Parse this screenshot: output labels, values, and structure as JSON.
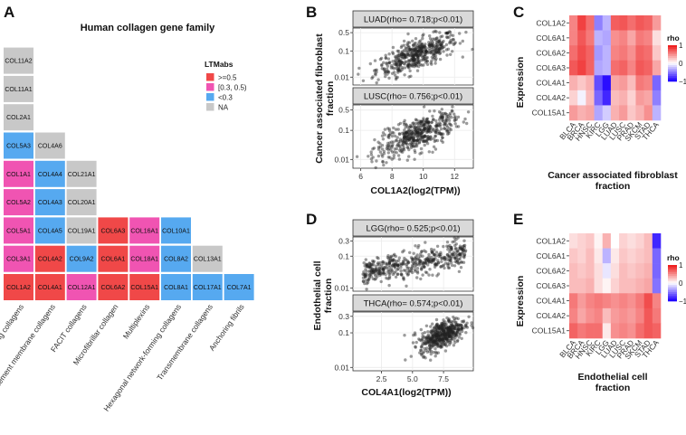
{
  "panels": {
    "a": {
      "letter": "A"
    },
    "b": {
      "letter": "B"
    },
    "c": {
      "letter": "C"
    },
    "d": {
      "letter": "D"
    },
    "e": {
      "letter": "E"
    }
  },
  "chart_data": [
    {
      "type": "table",
      "id": "A",
      "title": "Human collagen gene family",
      "categories": [
        "Fibril-forming collagens",
        "Basement membrane collagens",
        "FACIT collagens",
        "Microfibrillar collagen",
        "Multiplexins",
        "Hexagonal network-forming collagens",
        "Transmembrane collagens",
        "Anchoring fibrils"
      ],
      "columns": [
        [
          {
            "gene": "COL1A2",
            "class": ">=0.5"
          },
          {
            "gene": "COL3A1",
            "class": "[0.3, 0.5)"
          },
          {
            "gene": "COL5A1",
            "class": "[0.3, 0.5)"
          },
          {
            "gene": "COL5A2",
            "class": "[0.3, 0.5)"
          },
          {
            "gene": "COL1A1",
            "class": "[0.3, 0.5)"
          },
          {
            "gene": "COL5A3",
            "class": "<0.3"
          },
          {
            "gene": "COL2A1",
            "class": "NA"
          },
          {
            "gene": "COL11A1",
            "class": "NA"
          },
          {
            "gene": "COL11A2",
            "class": "NA"
          }
        ],
        [
          {
            "gene": "COL4A1",
            "class": ">=0.5"
          },
          {
            "gene": "COL4A2",
            "class": ">=0.5"
          },
          {
            "gene": "COL4A5",
            "class": "<0.3"
          },
          {
            "gene": "COL4A3",
            "class": "<0.3"
          },
          {
            "gene": "COL4A4",
            "class": "<0.3"
          },
          {
            "gene": "COL4A6",
            "class": "NA"
          }
        ],
        [
          {
            "gene": "COL12A1",
            "class": "[0.3, 0.5)"
          },
          {
            "gene": "COL9A2",
            "class": "<0.3"
          },
          {
            "gene": "COL19A1",
            "class": "NA"
          },
          {
            "gene": "COL20A1",
            "class": "NA"
          },
          {
            "gene": "COL21A1",
            "class": "NA"
          }
        ],
        [
          {
            "gene": "COL6A2",
            "class": ">=0.5"
          },
          {
            "gene": "COL6A1",
            "class": ">=0.5"
          },
          {
            "gene": "COL6A3",
            "class": ">=0.5"
          }
        ],
        [
          {
            "gene": "COL15A1",
            "class": ">=0.5"
          },
          {
            "gene": "COL18A1",
            "class": "[0.3, 0.5)"
          },
          {
            "gene": "COL16A1",
            "class": "[0.3, 0.5)"
          }
        ],
        [
          {
            "gene": "COL8A1",
            "class": "<0.3"
          },
          {
            "gene": "COL8A2",
            "class": "<0.3"
          },
          {
            "gene": "COL10A1",
            "class": "<0.3"
          }
        ],
        [
          {
            "gene": "COL17A1",
            "class": "<0.3"
          },
          {
            "gene": "COL13A1",
            "class": "NA"
          }
        ],
        [
          {
            "gene": "COL7A1",
            "class": "<0.3"
          }
        ]
      ],
      "legend": {
        "title": "LTMabs",
        "entries": [
          {
            "label": ">=0.5",
            "color": "#f04848"
          },
          {
            "label": "[0.3, 0.5)",
            "color": "#f054b2"
          },
          {
            "label": "<0.3",
            "color": "#56a9f0"
          },
          {
            "label": "NA",
            "color": "#c8c8c8"
          }
        ]
      }
    },
    {
      "type": "scatter",
      "id": "B",
      "xlabel": "COL1A2(log2(TPM))",
      "ylabel": "Cancer associated fibroblast fraction",
      "xlim": [
        5.5,
        13.2
      ],
      "xticks": [
        6,
        8,
        10,
        12
      ],
      "yscale": "log",
      "facets": [
        {
          "strip": "LUAD(rho= 0.718;p<0.01)",
          "ylim": [
            0.005,
            0.75
          ],
          "yticks": [
            0.01,
            0.1,
            0.5
          ],
          "ytick_labels": [
            "0.01",
            "0.1",
            "0.5"
          ],
          "trend": {
            "x0": 6,
            "x1": 12.8,
            "y0": 0.012,
            "y1": 0.35
          }
        },
        {
          "strip": "LUSC(rho= 0.756;p<0.01)",
          "ylim": [
            0.005,
            0.75
          ],
          "yticks": [
            0.01,
            0.1,
            0.5
          ],
          "ytick_labels": [
            "0.01",
            "0.1",
            "0.5"
          ],
          "trend": {
            "x0": 6,
            "x1": 12.8,
            "y0": 0.012,
            "y1": 0.32
          }
        }
      ]
    },
    {
      "type": "heatmap",
      "id": "C",
      "xlabel": "Cancer associated fibroblast fraction",
      "ylabel": "Expression",
      "rows": [
        "COL1A2",
        "COL6A1",
        "COL6A2",
        "COL6A3",
        "COL4A1",
        "COL4A2",
        "COL15A1"
      ],
      "columns": [
        "BLCA",
        "BRCA",
        "HNSC",
        "KIRC",
        "LGG",
        "LUAD",
        "LUSC",
        "PRAD",
        "SKCM",
        "STAD",
        "THCA"
      ],
      "values": [
        [
          0.55,
          0.85,
          0.65,
          -0.5,
          -0.3,
          0.72,
          0.76,
          0.65,
          0.75,
          0.7,
          0.45
        ],
        [
          0.55,
          0.75,
          0.6,
          -0.3,
          -0.35,
          0.5,
          0.55,
          0.4,
          0.6,
          0.55,
          0.15
        ],
        [
          0.65,
          0.8,
          0.7,
          -0.4,
          -0.3,
          0.55,
          0.6,
          0.5,
          0.7,
          0.65,
          0.25
        ],
        [
          0.75,
          0.85,
          0.7,
          -0.35,
          -0.3,
          0.65,
          0.7,
          0.55,
          0.75,
          0.7,
          0.4
        ],
        [
          0.35,
          0.25,
          0.35,
          -0.7,
          -0.95,
          0.4,
          0.45,
          0.3,
          0.6,
          0.55,
          -0.6
        ],
        [
          0.2,
          -0.05,
          0.3,
          -0.6,
          -0.85,
          0.3,
          0.35,
          0.2,
          0.45,
          0.4,
          -0.5
        ],
        [
          0.45,
          0.35,
          0.4,
          -0.35,
          -0.2,
          0.35,
          0.45,
          0.25,
          0.35,
          0.5,
          -0.3
        ]
      ],
      "legend": {
        "title": "rho",
        "min": -1,
        "max": 1,
        "ticks": [
          1,
          0,
          -1
        ],
        "tick_labels": [
          "1",
          "0",
          "−1"
        ],
        "low_color": "#1f00ff",
        "mid_color": "#ffffff",
        "high_color": "#ee2020"
      }
    },
    {
      "type": "scatter",
      "id": "D",
      "xlabel": "COL4A1(log2(TPM))",
      "ylabel": "Endothelial cell fraction",
      "xlim": [
        0.2,
        9.9
      ],
      "xticks": [
        2.5,
        5.0,
        7.5
      ],
      "xtick_labels": [
        "2.5",
        "5.0",
        "7.5"
      ],
      "yscale": "log",
      "facets": [
        {
          "strip": "LGG(rho= 0.525;p<0.01)",
          "ylim": [
            0.008,
            0.4
          ],
          "yticks": [
            0.01,
            0.1,
            0.3
          ],
          "ytick_labels": [
            "0.01",
            "0.1",
            "0.3"
          ],
          "trend": {
            "x0": 1.0,
            "x1": 9.5,
            "y0": 0.03,
            "y1": 0.12
          }
        },
        {
          "strip": "THCA(rho= 0.574;p<0.01)",
          "ylim": [
            0.008,
            0.4
          ],
          "yticks": [
            0.01,
            0.1,
            0.3
          ],
          "ytick_labels": [
            "0.01",
            "0.1",
            "0.3"
          ],
          "trend": {
            "x0": 5.0,
            "x1": 9.5,
            "y0": 0.04,
            "y1": 0.18
          }
        }
      ]
    },
    {
      "type": "heatmap",
      "id": "E",
      "xlabel": "Endothelial cell fraction",
      "ylabel": "Expression",
      "rows": [
        "COL1A2",
        "COL6A1",
        "COL6A2",
        "COL6A3",
        "COL4A1",
        "COL4A2",
        "COL15A1"
      ],
      "columns": [
        "BLCA",
        "BRCA",
        "HNSC",
        "KIRC",
        "LGG",
        "LUAD",
        "LUSC",
        "PRAD",
        "SKCM",
        "STAD",
        "THCA"
      ],
      "values": [
        [
          0.15,
          0.2,
          0.25,
          0.05,
          0.35,
          0.0,
          0.2,
          0.15,
          0.2,
          0.3,
          -0.85
        ],
        [
          0.25,
          0.2,
          0.3,
          0.1,
          -0.3,
          0.1,
          0.25,
          0.2,
          0.25,
          0.3,
          -0.6
        ],
        [
          0.3,
          0.25,
          0.3,
          0.15,
          -0.1,
          0.15,
          0.3,
          0.25,
          0.3,
          0.35,
          -0.6
        ],
        [
          0.3,
          0.3,
          0.35,
          0.15,
          0.05,
          0.2,
          0.3,
          0.3,
          0.35,
          0.4,
          -0.55
        ],
        [
          0.6,
          0.45,
          0.55,
          0.6,
          0.55,
          0.5,
          0.55,
          0.5,
          0.6,
          0.8,
          0.55
        ],
        [
          0.55,
          0.4,
          0.5,
          0.55,
          0.3,
          0.45,
          0.5,
          0.45,
          0.55,
          0.75,
          0.6
        ],
        [
          0.7,
          0.6,
          0.65,
          0.65,
          0.1,
          0.5,
          0.55,
          0.5,
          0.65,
          0.75,
          0.7
        ]
      ],
      "legend": {
        "title": "rho",
        "min": -1,
        "max": 1,
        "ticks": [
          1,
          0,
          -1
        ],
        "tick_labels": [
          "1",
          "0",
          "−1"
        ],
        "low_color": "#1f00ff",
        "mid_color": "#ffffff",
        "high_color": "#ee2020"
      }
    }
  ]
}
